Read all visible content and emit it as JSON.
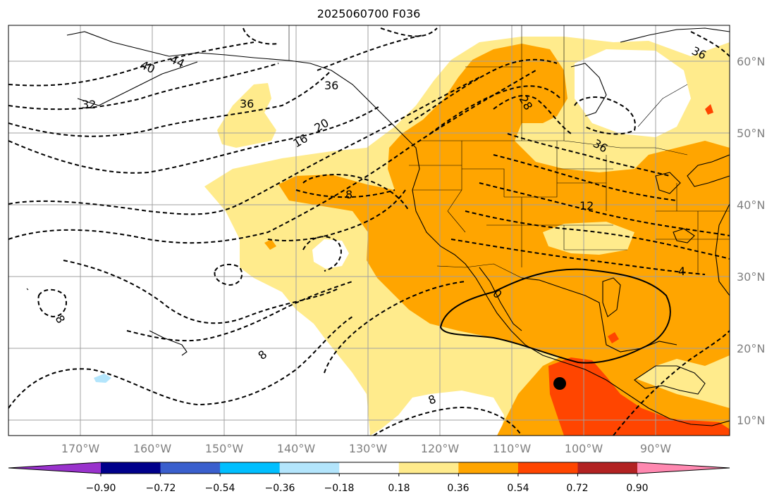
{
  "title": "2025060700 F036",
  "map": {
    "lon_ticks": [
      "170°W",
      "160°W",
      "150°W",
      "140°W",
      "130°W",
      "120°W",
      "110°W",
      "100°W",
      "90°W"
    ],
    "lat_ticks": [
      "60°N",
      "50°N",
      "40°N",
      "30°N",
      "20°N",
      "10°N"
    ],
    "contour_labels": [
      "40",
      "44",
      "32",
      "36",
      "36",
      "16",
      "20",
      "28",
      "36",
      "8",
      "12",
      "4",
      "0",
      "8",
      "8",
      "8",
      "36"
    ],
    "marker": "storm-center-dot"
  },
  "colorbar": {
    "tick_labels": [
      "−0.90",
      "−0.72",
      "−0.54",
      "−0.36",
      "−0.18",
      "0.18",
      "0.36",
      "0.54",
      "0.72",
      "0.90"
    ],
    "colors": [
      "#9932cc",
      "#00008b",
      "#3a5fcd",
      "#00bfff",
      "#b3e5fc",
      "#ffffff",
      "#ffeb8c",
      "#ffa500",
      "#ff4500",
      "#b22222",
      "#ff88b0"
    ]
  }
}
